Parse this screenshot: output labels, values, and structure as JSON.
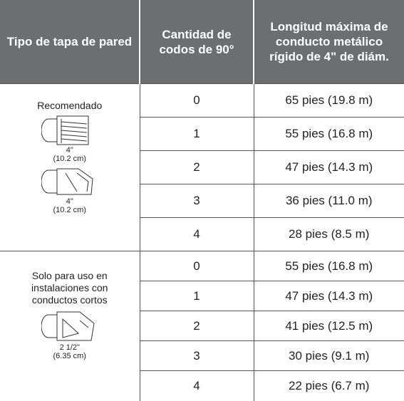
{
  "header": [
    "Tipo de tapa de pared",
    "Cantidad de codos de 90°",
    "Longitud máxima de conducto metálico rígido de 4\" de diám."
  ],
  "groups": [
    {
      "label": "Recomendado",
      "dims": [
        {
          "size": "4\"",
          "metric": "(10.2 cm)"
        },
        {
          "size": "4\"",
          "metric": "(10.2 cm)"
        }
      ],
      "rows": [
        [
          0,
          "65 pies (19.8 m)"
        ],
        [
          1,
          "55 pies (16.8 m)"
        ],
        [
          2,
          "47 pies (14.3 m)"
        ],
        [
          3,
          "36 pies (11.0 m)"
        ],
        [
          4,
          "28 pies (8.5 m)"
        ]
      ]
    },
    {
      "label": "Solo para uso en instalaciones con conductos cortos",
      "dims": [
        {
          "size": "2 1/2\"",
          "metric": "(6.35 cm)"
        }
      ],
      "rows": [
        [
          0,
          "55 pies (16.8 m)"
        ],
        [
          1,
          "47 pies (14.3 m)"
        ],
        [
          2,
          "41 pies (12.5 m)"
        ],
        [
          3,
          "30 pies (9.1 m)"
        ],
        [
          4,
          "22 pies (6.7 m)"
        ]
      ]
    }
  ]
}
